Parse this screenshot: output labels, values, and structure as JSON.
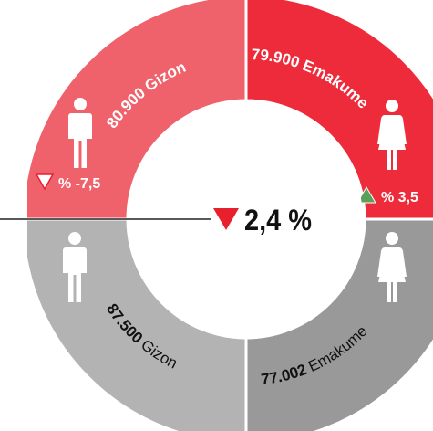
{
  "center": {
    "text": "2,4 %"
  },
  "quadrants": [
    {
      "value": "80.900",
      "label": "Gizon",
      "change": "% -7,5"
    },
    {
      "value": "79.900",
      "label": "Emakume",
      "change": "% 3,5"
    },
    {
      "value": "87.500",
      "label": "Gizon"
    },
    {
      "value": "77.002",
      "label": "Emakume"
    }
  ]
}
